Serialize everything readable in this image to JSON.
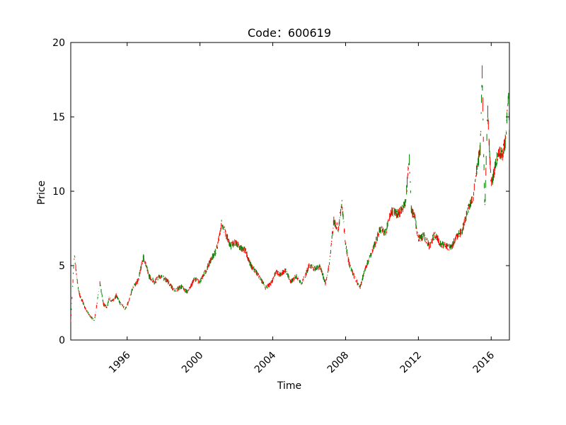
{
  "chart_data": {
    "type": "line",
    "title": "Code：600619",
    "xlabel": "Time",
    "ylabel": "Price",
    "xlim": [
      1992.9,
      2017.0
    ],
    "ylim": [
      0,
      20
    ],
    "x_ticks": [
      "1996",
      "2000",
      "2004",
      "2008",
      "2012",
      "2016"
    ],
    "y_ticks": [
      "0",
      "5",
      "10",
      "15",
      "20"
    ],
    "grid": false,
    "legend": "none",
    "colors": {
      "up": "#ff0000",
      "down": "#008000"
    },
    "series": [
      {
        "x": [
          1992.9,
          1993.0,
          1993.1,
          1993.2,
          1993.3,
          1993.4,
          1993.55,
          1993.7,
          1993.9,
          1994.2,
          1994.5,
          1994.7,
          1994.9,
          1995.0,
          1995.2,
          1995.4,
          1995.6,
          1995.9,
          1996.1,
          1996.3,
          1996.6,
          1996.9,
          1997.2,
          1997.5,
          1997.8,
          1998.2,
          1998.6,
          1999.0,
          1999.3,
          1999.7,
          2000.0,
          2000.3,
          2000.6,
          2000.9,
          2001.2,
          2001.45,
          2001.7,
          2001.9,
          2002.2,
          2002.5,
          2002.8,
          2003.0,
          2003.3,
          2003.6,
          2003.9,
          2004.2,
          2004.4,
          2004.7,
          2005.0,
          2005.3,
          2005.6,
          2005.9,
          2006.0,
          2006.3,
          2006.6,
          2006.9,
          2007.1,
          2007.35,
          2007.6,
          2007.8,
          2008.0,
          2008.2,
          2008.5,
          2008.8,
          2009.0,
          2009.3,
          2009.6,
          2009.9,
          2010.2,
          2010.5,
          2010.8,
          2011.0,
          2011.3,
          2011.5,
          2011.6,
          2011.8,
          2012.0,
          2012.3,
          2012.6,
          2012.9,
          2013.2,
          2013.5,
          2013.8,
          2014.1,
          2014.4,
          2014.7,
          2015.0,
          2015.2,
          2015.4,
          2015.5,
          2015.65,
          2015.8,
          2016.0,
          2016.2,
          2016.4,
          2016.6,
          2016.8,
          2016.95,
          2017.0
        ],
        "y": [
          1.3,
          3.5,
          5.8,
          4.6,
          3.5,
          3.0,
          2.6,
          2.1,
          1.7,
          1.3,
          3.8,
          2.4,
          2.2,
          2.8,
          2.6,
          3.0,
          2.5,
          2.1,
          2.6,
          3.5,
          4.0,
          5.6,
          4.3,
          3.9,
          4.3,
          4.0,
          3.3,
          3.6,
          3.2,
          4.1,
          3.9,
          4.6,
          5.4,
          6.0,
          7.9,
          7.0,
          6.3,
          6.6,
          6.2,
          6.0,
          5.0,
          4.7,
          4.2,
          3.5,
          3.8,
          4.6,
          4.4,
          4.7,
          3.9,
          4.3,
          3.8,
          4.7,
          5.0,
          4.8,
          4.9,
          3.8,
          5.1,
          8.0,
          7.5,
          9.2,
          6.4,
          5.1,
          4.2,
          3.5,
          4.5,
          5.5,
          6.4,
          7.5,
          7.2,
          8.7,
          8.5,
          8.6,
          9.3,
          12.4,
          8.8,
          8.2,
          6.8,
          7.0,
          6.3,
          7.1,
          6.5,
          6.3,
          6.2,
          7.0,
          7.3,
          8.7,
          9.5,
          11.5,
          12.8,
          18.0,
          8.5,
          15.5,
          10.5,
          11.5,
          12.8,
          12.4,
          13.5,
          16.8,
          14.5
        ]
      }
    ]
  }
}
